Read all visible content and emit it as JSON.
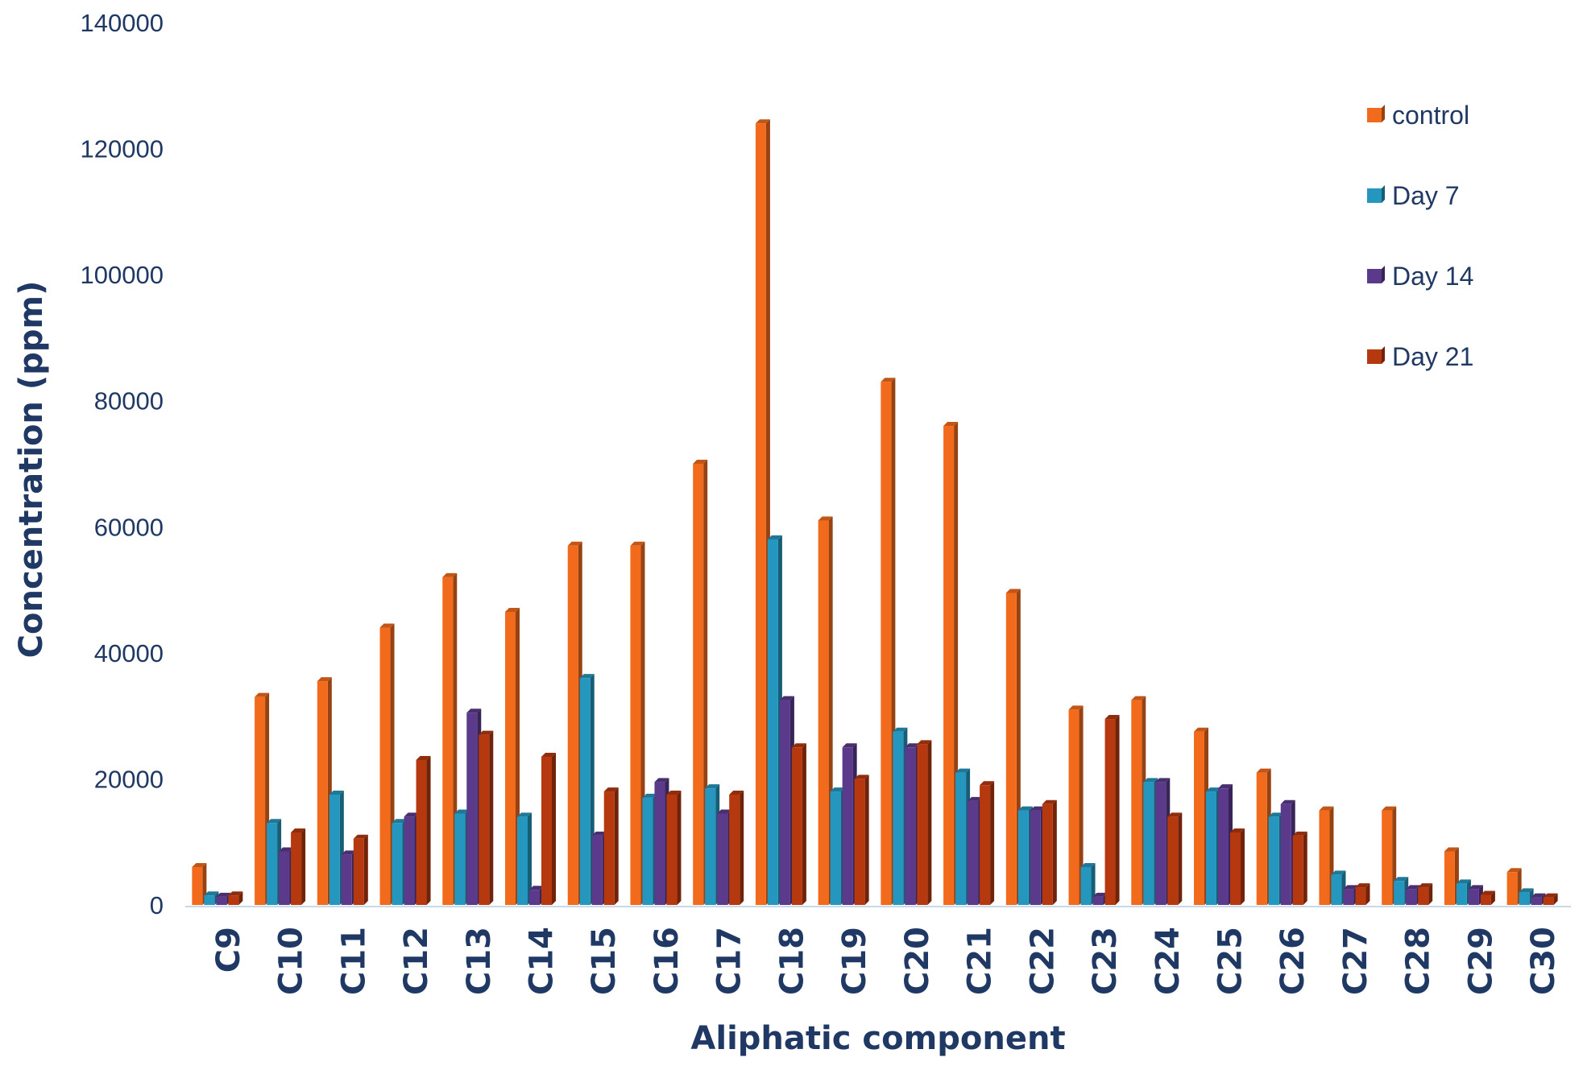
{
  "chart_data": {
    "type": "bar",
    "title": "",
    "xlabel": "Aliphatic component",
    "ylabel": "Concentration (ppm)",
    "ylim": [
      0,
      140000
    ],
    "yticks": [
      "0",
      "20000",
      "40000",
      "60000",
      "80000",
      "100000",
      "120000",
      "140000"
    ],
    "grid": false,
    "legend_position": "top-right",
    "categories": [
      "C9",
      "C10",
      "C11",
      "C12",
      "C13",
      "C14",
      "C15",
      "C16",
      "C17",
      "C18",
      "C19",
      "C20",
      "C21",
      "C22",
      "C23",
      "C24",
      "C25",
      "C26",
      "C27",
      "C28",
      "C29",
      "C30"
    ],
    "series": [
      {
        "name": "control",
        "color": "#f26b1d",
        "values": [
          6000,
          33000,
          35500,
          44000,
          52000,
          46500,
          57000,
          57000,
          70000,
          124000,
          61000,
          83000,
          76000,
          49500,
          31000,
          32500,
          27500,
          21000,
          15000,
          15000,
          8500,
          5200
        ]
      },
      {
        "name": "Day 7",
        "color": "#2596be",
        "values": [
          1500,
          13000,
          17500,
          13000,
          14500,
          14000,
          36000,
          17000,
          18500,
          58000,
          18000,
          27500,
          21000,
          15000,
          6000,
          19500,
          18000,
          14000,
          4800,
          3800,
          3400,
          2000
        ]
      },
      {
        "name": "Day 14",
        "color": "#5b3a8c",
        "values": [
          1300,
          8500,
          8000,
          14000,
          30500,
          2400,
          11000,
          19500,
          14500,
          32500,
          25000,
          25000,
          16500,
          15000,
          1300,
          19500,
          18500,
          16000,
          2500,
          2500,
          2500,
          1200
        ]
      },
      {
        "name": "Day 21",
        "color": "#b5380f",
        "values": [
          1500,
          11500,
          10500,
          23000,
          27000,
          23500,
          18000,
          17500,
          17500,
          25000,
          20000,
          25500,
          19000,
          16000,
          29500,
          14000,
          11500,
          11000,
          2800,
          2800,
          1600,
          1200
        ]
      }
    ]
  }
}
